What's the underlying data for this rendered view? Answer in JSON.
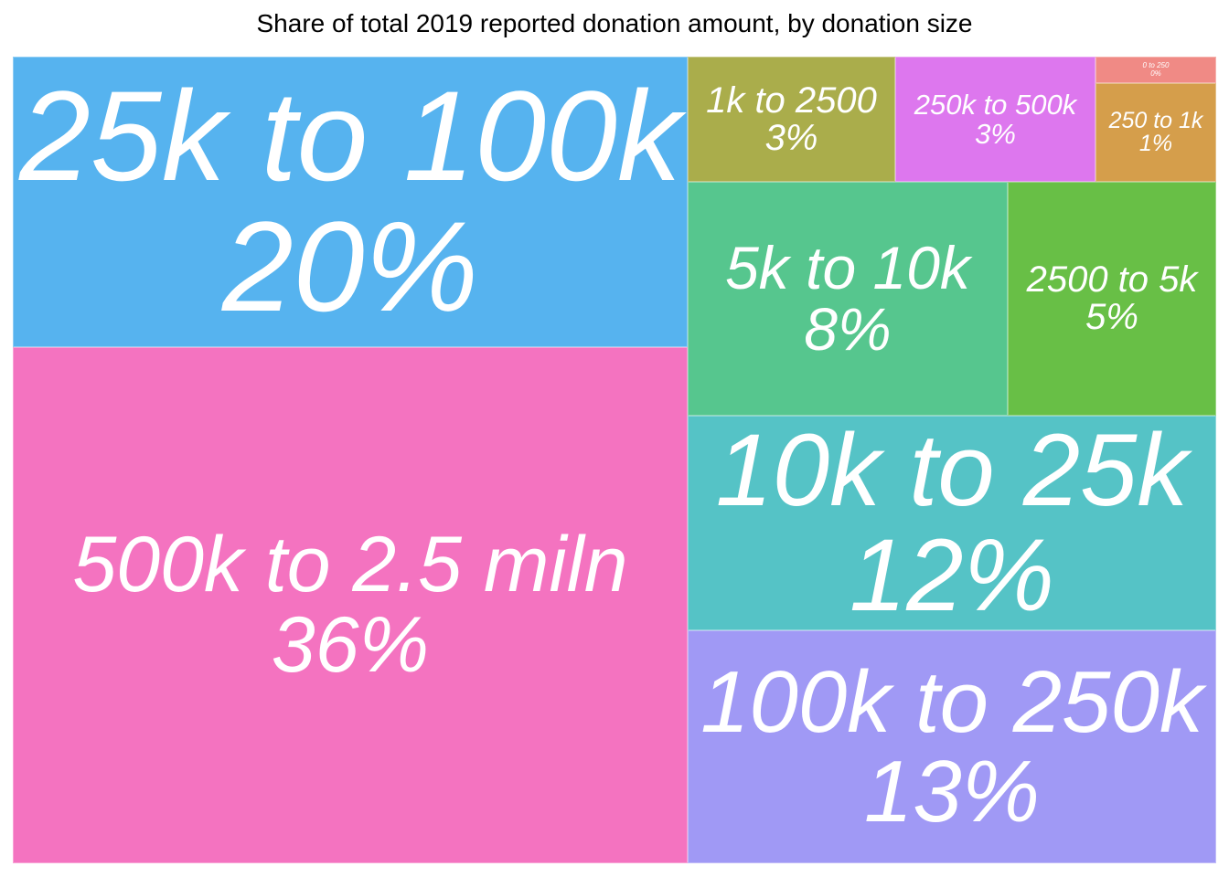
{
  "chart_data": {
    "type": "treemap",
    "title": "Share of total 2019 reported donation amount, by donation size",
    "tiles": [
      {
        "label": "500k to 2.5 miln",
        "pct": "36%",
        "value": 36,
        "color": "#F473C0"
      },
      {
        "label": "25k to 100k",
        "pct": "20%",
        "value": 20,
        "color": "#56B3EF"
      },
      {
        "label": "100k to 250k",
        "pct": "13%",
        "value": 13,
        "color": "#A099F5"
      },
      {
        "label": "10k to 25k",
        "pct": "12%",
        "value": 12,
        "color": "#55C3C6"
      },
      {
        "label": "5k to 10k",
        "pct": "8%",
        "value": 8,
        "color": "#56C68E"
      },
      {
        "label": "2500 to 5k",
        "pct": "5%",
        "value": 5,
        "color": "#68BF46"
      },
      {
        "label": "1k to 2500",
        "pct": "3%",
        "value": 3,
        "color": "#AAAD4B"
      },
      {
        "label": "250k to 500k",
        "pct": "3%",
        "value": 3,
        "color": "#DD77EE"
      },
      {
        "label": "250 to 1k",
        "pct": "1%",
        "value": 1,
        "color": "#D59E4B"
      },
      {
        "label": "0 to 250",
        "pct": "0%",
        "value": 0,
        "color": "#F08A85"
      }
    ]
  }
}
